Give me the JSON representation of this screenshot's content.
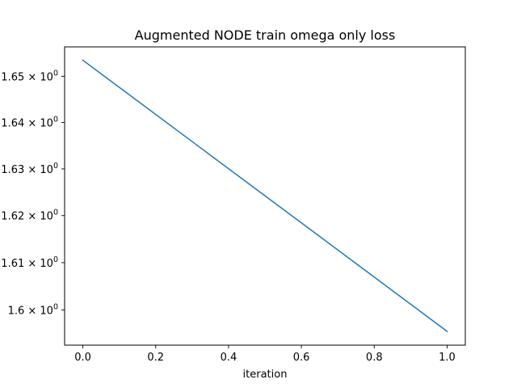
{
  "chart_data": {
    "type": "line",
    "title": "Augmented NODE train omega only loss",
    "xlabel": "iteration",
    "ylabel": "",
    "yscale": "log",
    "grid": false,
    "legend": "none",
    "x": [
      0.0,
      1.0
    ],
    "series": [
      {
        "values": [
          1.6535,
          1.5955
        ],
        "color": "#1f77b4"
      }
    ],
    "xlim": [
      -0.05,
      1.05
    ],
    "ylim": [
      1.5926,
      1.6564
    ],
    "xticks": [
      0.0,
      0.2,
      0.4,
      0.6,
      0.8,
      1.0
    ],
    "xtick_labels": [
      "0.0",
      "0.2",
      "0.4",
      "0.6",
      "0.8",
      "1.0"
    ],
    "yticks": [
      {
        "value": 1.6,
        "mantissa": "1.6",
        "base": "10",
        "exp": "0"
      },
      {
        "value": 1.61,
        "mantissa": "1.61",
        "base": "10",
        "exp": "0"
      },
      {
        "value": 1.62,
        "mantissa": "1.62",
        "base": "10",
        "exp": "0"
      },
      {
        "value": 1.63,
        "mantissa": "1.63",
        "base": "10",
        "exp": "0"
      },
      {
        "value": 1.64,
        "mantissa": "1.64",
        "base": "10",
        "exp": "0"
      },
      {
        "value": 1.65,
        "mantissa": "1.65",
        "base": "10",
        "exp": "0"
      }
    ]
  }
}
